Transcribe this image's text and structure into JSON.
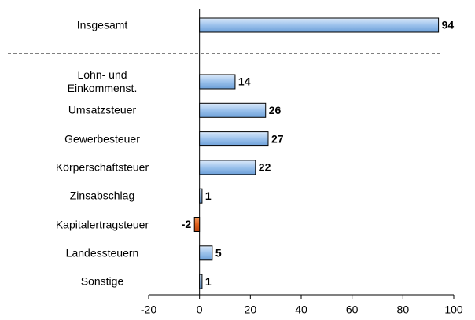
{
  "chart_data": {
    "type": "bar",
    "orientation": "horizontal",
    "categories": [
      "Insgesamt",
      "Lohn- und\nEinkommenst.",
      "Umsatzsteuer",
      "Gewerbesteuer",
      "Körperschaftsteuer",
      "Zinsabschlag",
      "Kapitalertragsteuer",
      "Landessteuern",
      "Sonstige"
    ],
    "values": [
      94,
      14,
      26,
      27,
      22,
      1,
      -2,
      5,
      1
    ],
    "color": "#9cc2ec",
    "negative_color": "#e0601c",
    "xlim": [
      -20,
      100
    ],
    "xticks": [
      -20,
      0,
      20,
      40,
      60,
      80,
      100
    ]
  }
}
